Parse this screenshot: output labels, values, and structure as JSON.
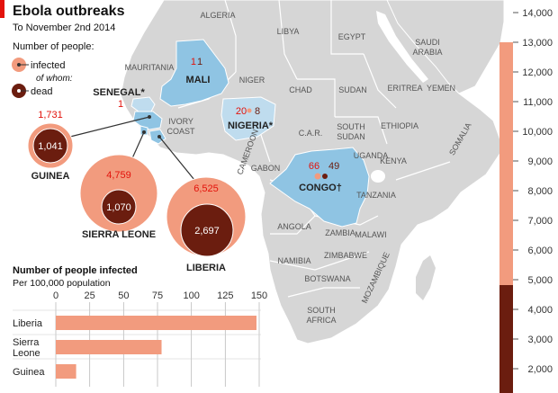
{
  "header": {
    "title": "Ebola outbreaks",
    "subtitle": "To November 2nd 2014",
    "accent_color": "#e3120b"
  },
  "legend": {
    "heading": "Number of people:",
    "infected_label": "infected",
    "of_whom_label": "of whom:",
    "dead_label": "dead",
    "infected_color": "#f29b7e",
    "dead_color": "#6b1d0f"
  },
  "map": {
    "region_labels": [
      "ALGERIA",
      "LIBYA",
      "EGYPT",
      "SAUDI",
      "ARABIA",
      "YEMEN",
      "MAURITANIA",
      "NIGER",
      "CHAD",
      "SUDAN",
      "ERITREA",
      "IVORY",
      "COAST",
      "CAMEROON",
      "C.A.R.",
      "SOUTH",
      "SUDAN",
      "ETHIOPIA",
      "SOMALIA",
      "GABON",
      "UGANDA",
      "KENYA",
      "TANZANIA",
      "ANGOLA",
      "ZAMBIA",
      "MALAWI",
      "NAMIBIA",
      "ZIMBABWE",
      "MOZAMBIQUE",
      "BOTSWANA",
      "SOUTH",
      "AFRICA"
    ],
    "land_color": "#d6d6d6",
    "affected_color": "#8fc4e3",
    "asterisk_affected_color": "#bfdcee",
    "sea_color": "#ffffff"
  },
  "countries": [
    {
      "name": "MALI",
      "infected": "1",
      "dead": "1"
    },
    {
      "name": "SENEGAL*",
      "infected": "1",
      "dead": ""
    },
    {
      "name": "NIGERIA*",
      "infected": "20",
      "dead": "8"
    },
    {
      "name": "CONGO†",
      "infected": "66",
      "dead": "49"
    },
    {
      "name": "GUINEA",
      "infected": "1,731",
      "dead": "1,041"
    },
    {
      "name": "SIERRA LEONE",
      "infected": "4,759",
      "dead": "1,070"
    },
    {
      "name": "LIBERIA",
      "infected": "6,525",
      "dead": "2,697"
    }
  ],
  "scale_bar": {
    "ticks": [
      "14,000",
      "13,000",
      "12,000",
      "11,000",
      "10,000",
      "9,000",
      "8,000",
      "7,000",
      "6,000",
      "5,000",
      "4,000",
      "3,000",
      "2,000"
    ],
    "infected_total": 13015,
    "dead_total": 4808
  },
  "chart_data": {
    "type": "bar",
    "title": "Number of people infected",
    "subtitle": "Per 100,000 population",
    "categories": [
      "Liberia",
      "Sierra Leone",
      "Guinea"
    ],
    "category_lines": [
      [
        "Liberia"
      ],
      [
        "Sierra",
        "Leone"
      ],
      [
        "Guinea"
      ]
    ],
    "values": [
      148,
      78,
      15
    ],
    "xlim": [
      0,
      150
    ],
    "xticks": [
      "0",
      "25",
      "50",
      "75",
      "100",
      "125",
      "150"
    ],
    "grid": true,
    "bar_color": "#f29b7e"
  }
}
